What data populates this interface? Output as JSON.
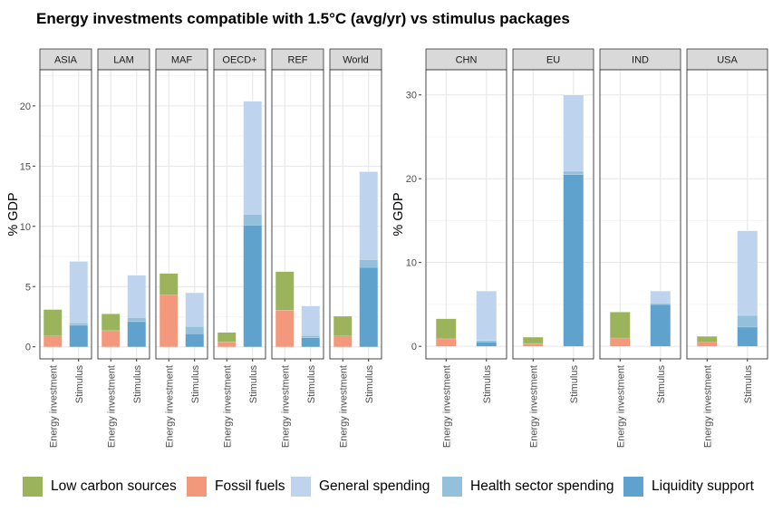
{
  "title": "Energy investments compatible with 1.5°C (avg/yr) vs stimulus packages",
  "legend": [
    {
      "key": "low_carbon",
      "label": "Low carbon sources",
      "color": "#9bb35a"
    },
    {
      "key": "fossil",
      "label": "Fossil fuels",
      "color": "#f3987a"
    },
    {
      "key": "general",
      "label": "General spending",
      "color": "#bed4ee"
    },
    {
      "key": "health",
      "label": "Health sector spending",
      "color": "#94c0dc"
    },
    {
      "key": "liquidity",
      "label": "Liquidity support",
      "color": "#5ea2cd"
    }
  ],
  "chart_data": [
    {
      "type": "bar",
      "stacked": true,
      "ylabel": "% GDP",
      "ylim": [
        -1,
        23
      ],
      "yticks": [
        0,
        5,
        10,
        15,
        20
      ],
      "categories": [
        "Energy investment",
        "Stimulus"
      ],
      "panels": [
        {
          "name": "ASIA",
          "bars": [
            {
              "low_carbon": 2.2,
              "fossil": 0.9
            },
            {
              "liquidity": 1.8,
              "health": 0.2,
              "general": 5.1
            }
          ]
        },
        {
          "name": "LAM",
          "bars": [
            {
              "low_carbon": 1.4,
              "fossil": 1.35
            },
            {
              "liquidity": 2.1,
              "health": 0.35,
              "general": 3.5
            }
          ]
        },
        {
          "name": "MAF",
          "bars": [
            {
              "low_carbon": 1.8,
              "fossil": 4.3
            },
            {
              "liquidity": 1.1,
              "health": 0.6,
              "general": 2.8
            }
          ]
        },
        {
          "name": "OECD+",
          "bars": [
            {
              "low_carbon": 0.8,
              "fossil": 0.4
            },
            {
              "liquidity": 10.1,
              "health": 0.9,
              "general": 9.4
            }
          ]
        },
        {
          "name": "REF",
          "bars": [
            {
              "low_carbon": 3.2,
              "fossil": 3.05
            },
            {
              "liquidity": 0.75,
              "health": 0.2,
              "general": 2.45
            }
          ]
        },
        {
          "name": "World",
          "bars": [
            {
              "low_carbon": 1.65,
              "fossil": 0.9
            },
            {
              "liquidity": 6.6,
              "health": 0.65,
              "general": 7.3
            }
          ]
        }
      ]
    },
    {
      "type": "bar",
      "stacked": true,
      "ylabel": "% GDP",
      "ylim": [
        -1.5,
        33
      ],
      "yticks": [
        0,
        10,
        20,
        30
      ],
      "categories": [
        "Energy investment",
        "Stimulus"
      ],
      "panels": [
        {
          "name": "CHN",
          "bars": [
            {
              "low_carbon": 2.4,
              "fossil": 0.9
            },
            {
              "liquidity": 0.5,
              "health": 0.2,
              "general": 5.9
            }
          ]
        },
        {
          "name": "EU",
          "bars": [
            {
              "low_carbon": 0.75,
              "fossil": 0.35
            },
            {
              "liquidity": 20.5,
              "health": 0.4,
              "general": 9.1
            }
          ]
        },
        {
          "name": "IND",
          "bars": [
            {
              "low_carbon": 3.1,
              "fossil": 1.0
            },
            {
              "liquidity": 5.0,
              "health": 0.15,
              "general": 1.45
            }
          ]
        },
        {
          "name": "USA",
          "bars": [
            {
              "low_carbon": 0.7,
              "fossil": 0.5
            },
            {
              "liquidity": 2.3,
              "health": 1.4,
              "general": 10.1
            }
          ]
        }
      ]
    }
  ]
}
